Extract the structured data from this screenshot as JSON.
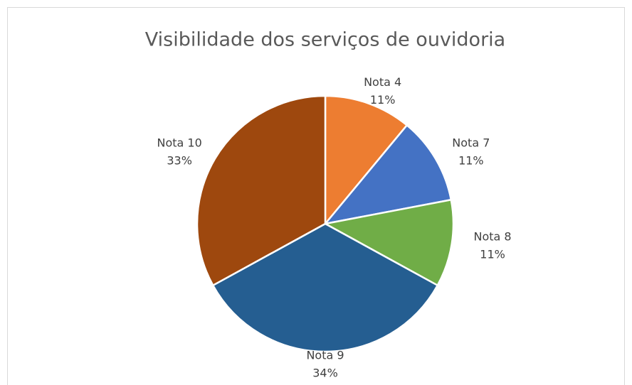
{
  "chart_data": {
    "type": "pie",
    "title": "Visibilidade dos serviços de ouvidoria",
    "categories": [
      "Nota 4",
      "Nota 7",
      "Nota 8",
      "Nota 9",
      "Nota 10"
    ],
    "values": [
      11,
      11,
      11,
      34,
      33
    ],
    "value_labels": [
      "11%",
      "11%",
      "11%",
      "34%",
      "33%"
    ],
    "colors": [
      "#ed7d31",
      "#4472c4",
      "#70ad47",
      "#255e91",
      "#9e480e"
    ]
  }
}
